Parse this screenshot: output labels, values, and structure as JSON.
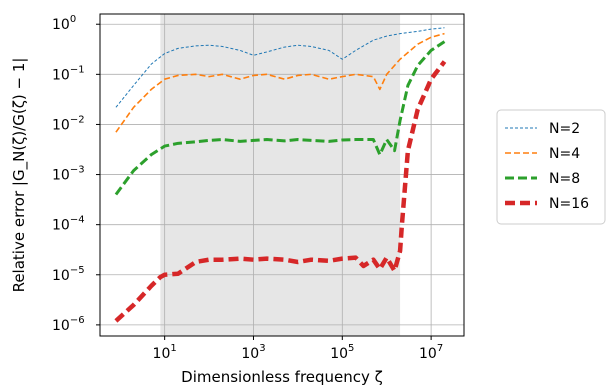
{
  "chart_data": {
    "type": "line",
    "xlabel": "Dimensionless frequency ζ",
    "ylabel": "Relative error |G_N(ζ)/G(ζ) − 1|",
    "x_scale": "log",
    "y_scale": "log",
    "xlim": [
      0.35,
      55000000
    ],
    "ylim": [
      6e-07,
      1.6
    ],
    "x_ticks": [
      {
        "value": 10,
        "base": "10",
        "exp": "1"
      },
      {
        "value": 1000,
        "base": "10",
        "exp": "3"
      },
      {
        "value": 100000,
        "base": "10",
        "exp": "5"
      },
      {
        "value": 10000000,
        "base": "10",
        "exp": "7"
      }
    ],
    "y_ticks": [
      {
        "value": 1,
        "base": "10",
        "exp": "0"
      },
      {
        "value": 0.1,
        "base": "10",
        "exp": "−1"
      },
      {
        "value": 0.01,
        "base": "10",
        "exp": "−2"
      },
      {
        "value": 0.001,
        "base": "10",
        "exp": "−3"
      },
      {
        "value": 0.0001,
        "base": "10",
        "exp": "−4"
      },
      {
        "value": 1e-05,
        "base": "10",
        "exp": "−5"
      },
      {
        "value": 1e-06,
        "base": "10",
        "exp": "−6"
      }
    ],
    "grid": true,
    "legend_position": "right",
    "shaded_region": {
      "x_from": 8,
      "x_to": 2000000,
      "color": "#e6e6e6"
    },
    "series": [
      {
        "name": "N=2",
        "color": "#1f77b4",
        "width": 1,
        "dash": "3,2",
        "x": [
          0.8,
          2,
          5,
          10,
          20,
          50,
          100,
          200,
          500,
          1000,
          2000,
          5000,
          10000,
          20000,
          50000,
          100000,
          200000,
          500000,
          1000000,
          2000000,
          5000000,
          10000000,
          20000000
        ],
        "y": [
          0.022,
          0.06,
          0.16,
          0.26,
          0.33,
          0.37,
          0.38,
          0.36,
          0.3,
          0.24,
          0.28,
          0.35,
          0.38,
          0.36,
          0.3,
          0.2,
          0.3,
          0.48,
          0.58,
          0.65,
          0.72,
          0.8,
          0.85
        ]
      },
      {
        "name": "N=4",
        "color": "#ff7f0e",
        "width": 1.6,
        "dash": "6,3",
        "x": [
          0.8,
          2,
          5,
          10,
          20,
          50,
          100,
          200,
          500,
          1000,
          2000,
          5000,
          10000,
          20000,
          50000,
          100000,
          200000,
          500000,
          700000,
          1000000,
          2000000,
          5000000,
          10000000,
          20000000
        ],
        "y": [
          0.007,
          0.022,
          0.05,
          0.08,
          0.095,
          0.1,
          0.09,
          0.1,
          0.08,
          0.095,
          0.1,
          0.08,
          0.095,
          0.1,
          0.08,
          0.09,
          0.1,
          0.09,
          0.05,
          0.1,
          0.2,
          0.4,
          0.55,
          0.65
        ]
      },
      {
        "name": "N=8",
        "color": "#2ca02c",
        "width": 3,
        "dash": "9,4",
        "x": [
          0.8,
          2,
          5,
          10,
          20,
          50,
          100,
          200,
          500,
          1000,
          2000,
          5000,
          10000,
          20000,
          50000,
          100000,
          200000,
          500000,
          700000,
          1000000,
          1500000,
          2000000,
          3000000,
          5000000,
          10000000,
          20000000
        ],
        "y": [
          0.0004,
          0.0012,
          0.0025,
          0.0037,
          0.0042,
          0.0045,
          0.0048,
          0.005,
          0.0046,
          0.0048,
          0.005,
          0.0047,
          0.005,
          0.0048,
          0.0046,
          0.0049,
          0.005,
          0.005,
          0.0025,
          0.005,
          0.003,
          0.012,
          0.06,
          0.15,
          0.3,
          0.45
        ]
      },
      {
        "name": "N=16",
        "color": "#d62728",
        "width": 4.5,
        "dash": "10,5",
        "x": [
          0.8,
          2,
          5,
          8,
          10,
          20,
          50,
          100,
          200,
          500,
          1000,
          2000,
          5000,
          10000,
          20000,
          50000,
          100000,
          200000,
          300000,
          500000,
          700000,
          1000000,
          1500000,
          2000000,
          2200000,
          3000000,
          5000000,
          10000000,
          20000000
        ],
        "y": [
          1.2e-06,
          2.5e-06,
          6e-06,
          9e-06,
          1e-05,
          1.05e-05,
          1.8e-05,
          2e-05,
          2e-05,
          2.1e-05,
          2e-05,
          2.1e-05,
          2e-05,
          1.8e-05,
          2e-05,
          1.9e-05,
          2.1e-05,
          2.2e-05,
          1.5e-05,
          2e-05,
          1.3e-05,
          2.2e-05,
          1.2e-05,
          3e-05,
          0.0001,
          0.003,
          0.02,
          0.08,
          0.18
        ]
      }
    ]
  }
}
